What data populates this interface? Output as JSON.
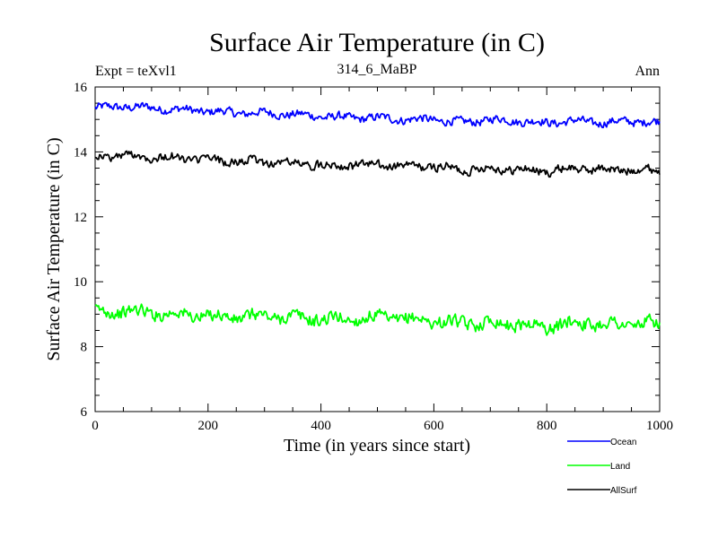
{
  "chart_data": {
    "type": "line",
    "title": "Surface Air Temperature (in C)",
    "subtitle": "314_6_MaBP",
    "header_left": "Expt = teXvl1",
    "header_right": "Ann",
    "xlabel": "Time (in years since start)",
    "ylabel": "Surface Air Temperature (in C)",
    "xlim": [
      0,
      1000
    ],
    "ylim": [
      6,
      16
    ],
    "xticks": [
      0,
      200,
      400,
      600,
      800,
      1000
    ],
    "xtick_labels": [
      "0",
      "200",
      "400",
      "600",
      "800",
      "1000"
    ],
    "yticks": [
      6,
      8,
      10,
      12,
      14,
      16
    ],
    "ytick_labels": [
      "6",
      "8",
      "10",
      "12",
      "14",
      "16"
    ],
    "grid": false,
    "legend_position": "bottom-right",
    "x": [
      0,
      50,
      100,
      150,
      200,
      250,
      300,
      350,
      400,
      450,
      500,
      550,
      600,
      650,
      700,
      750,
      800,
      850,
      900,
      950,
      1000
    ],
    "series": [
      {
        "name": "Ocean",
        "color": "#0000ff",
        "values": [
          15.35,
          15.4,
          15.35,
          15.3,
          15.25,
          15.2,
          15.2,
          15.15,
          15.1,
          15.05,
          15.05,
          15.0,
          15.0,
          14.9,
          15.0,
          14.95,
          14.9,
          14.95,
          14.9,
          14.95,
          14.9
        ]
      },
      {
        "name": "Land",
        "color": "#00ff00",
        "values": [
          9.05,
          9.1,
          9.05,
          9.0,
          8.95,
          8.9,
          8.95,
          8.9,
          8.85,
          8.85,
          8.9,
          8.85,
          8.8,
          8.7,
          8.75,
          8.7,
          8.6,
          8.75,
          8.7,
          8.7,
          8.7
        ]
      },
      {
        "name": "AllSurf",
        "color": "#000000",
        "values": [
          13.85,
          13.9,
          13.85,
          13.8,
          13.75,
          13.7,
          13.7,
          13.65,
          13.6,
          13.6,
          13.6,
          13.55,
          13.55,
          13.45,
          13.5,
          13.45,
          13.4,
          13.5,
          13.45,
          13.45,
          13.45
        ]
      }
    ]
  }
}
